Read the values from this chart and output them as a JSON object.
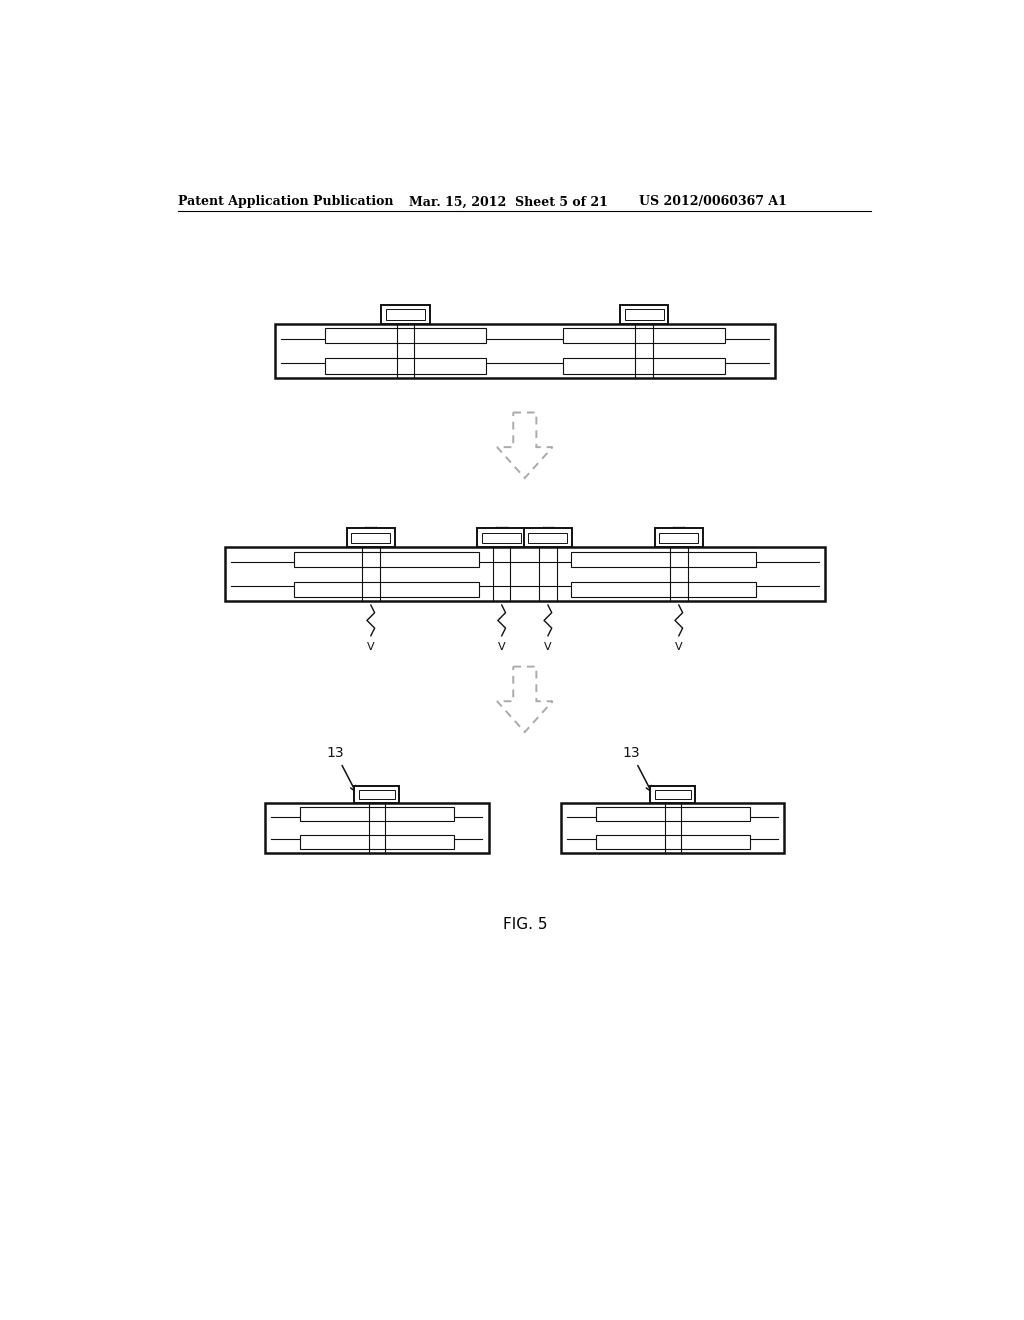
{
  "bg_color": "#ffffff",
  "header_left": "Patent Application Publication",
  "header_mid": "Mar. 15, 2012  Sheet 5 of 21",
  "header_right": "US 2012/0060367 A1",
  "footer_label": "FIG. 5",
  "color_dark": "#111111",
  "color_arrow": "#aaaaaa"
}
